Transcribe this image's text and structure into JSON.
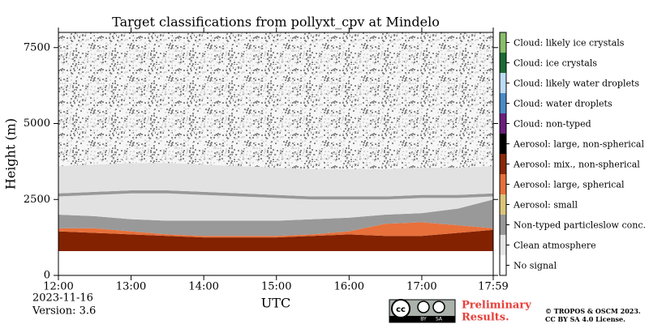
{
  "chart_data": {
    "type": "stacked_area",
    "title": "Target classifications from pollyxt_cpv at Mindelo",
    "x_label": "UTC",
    "y_label": "Height (m)",
    "x": [
      "12:00",
      "12:30",
      "13:00",
      "13:30",
      "14:00",
      "14:30",
      "15:00",
      "15:30",
      "16:00",
      "16:30",
      "17:00",
      "17:30",
      "17:59"
    ],
    "xlim": [
      "12:00",
      "17:59"
    ],
    "xticks": [
      "12:00",
      "13:00",
      "14:00",
      "15:00",
      "16:00",
      "17:00",
      "17:59"
    ],
    "ylim": [
      0,
      8000
    ],
    "yticks": [
      0,
      2500,
      5000,
      7500
    ],
    "series": [
      {
        "name": "No signal",
        "color": "#ffffff",
        "values": [
          800,
          800,
          800,
          800,
          800,
          800,
          800,
          800,
          800,
          800,
          800,
          800,
          800
        ]
      },
      {
        "name": "Aerosol: mix., non-spherical",
        "color": "#832200",
        "values": [
          650,
          600,
          550,
          500,
          450,
          450,
          450,
          500,
          550,
          500,
          500,
          600,
          700
        ]
      },
      {
        "name": "Aerosol: large, spherical",
        "color": "#e8703a",
        "values": [
          100,
          150,
          100,
          50,
          50,
          50,
          50,
          50,
          100,
          400,
          450,
          250,
          50
        ]
      },
      {
        "name": "Non-typed particleslow conc.",
        "color": "#999999",
        "values": [
          450,
          400,
          400,
          450,
          500,
          500,
          500,
          500,
          450,
          300,
          300,
          550,
          950
        ]
      },
      {
        "name": "Clean atmosphere",
        "color": "#e2e2e2",
        "values": [
          600,
          700,
          850,
          900,
          850,
          800,
          750,
          650,
          600,
          500,
          500,
          350,
          100
        ]
      },
      {
        "name": "Non-typed particleslow conc.",
        "color": "#999999",
        "values": [
          100,
          100,
          100,
          100,
          100,
          100,
          100,
          100,
          100,
          100,
          100,
          100,
          100
        ]
      },
      {
        "name": "Clean atmosphere",
        "color": "#e2e2e2",
        "values": [
          900,
          900,
          900,
          900,
          900,
          900,
          900,
          900,
          900,
          900,
          900,
          900,
          900
        ]
      },
      {
        "name": "Clean atmosphere",
        "color": "#f2f2f2",
        "pattern": "speckle",
        "values": [
          4400,
          4350,
          4300,
          4300,
          4350,
          4400,
          4450,
          4500,
          4500,
          4500,
          4450,
          4450,
          4400
        ]
      }
    ],
    "classes": [
      {
        "name": "No signal",
        "color": "#ffffff"
      },
      {
        "name": "Clean atmosphere",
        "color": "#e6e6e6"
      },
      {
        "name": "Non-typed particleslow conc.",
        "color": "#999999"
      },
      {
        "name": "Aerosol: small",
        "color": "#dcc67a"
      },
      {
        "name": "Aerosol: large, spherical",
        "color": "#e8703a"
      },
      {
        "name": "Aerosol: mix., non-spherical",
        "color": "#8b2a0a"
      },
      {
        "name": "Aerosol: large, non-spherical",
        "color": "#000000"
      },
      {
        "name": "Cloud: non-typed",
        "color": "#6a1f7d"
      },
      {
        "name": "Cloud: water droplets",
        "color": "#4a8cc8"
      },
      {
        "name": "Cloud: likely water droplets",
        "color": "#bcdcf5"
      },
      {
        "name": "Cloud: ice crystals",
        "color": "#1c6b34"
      },
      {
        "name": "Cloud: likely ice crystals",
        "color": "#8bbd6b"
      }
    ],
    "date": "2023-11-16",
    "version": "Version: 3.6",
    "preliminary": [
      "Preliminary",
      "Results."
    ],
    "license_badge": [
      "BY",
      "SA"
    ],
    "copyright": [
      "© TROPOS & OSCM 2023.",
      "CC BY SA 4.0 License."
    ]
  }
}
